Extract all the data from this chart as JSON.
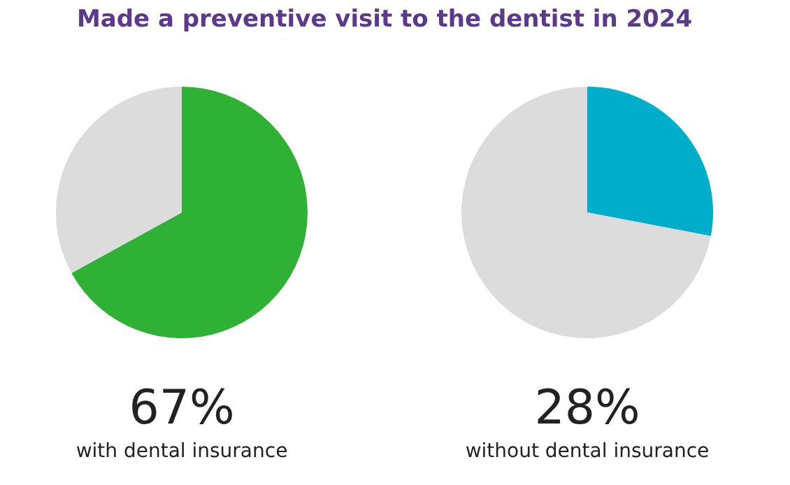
{
  "chart_data": [
    {
      "type": "pie",
      "title": "Made a preventive visit to the dentist in 2024",
      "categories": [
        null,
        null
      ],
      "values": [
        67,
        33
      ],
      "colors": [
        "#2eb135",
        "#dcdcdc"
      ],
      "annotations": [
        "67%",
        "with dental insurance"
      ]
    },
    {
      "type": "pie",
      "categories": [
        null,
        null
      ],
      "values": [
        28,
        72
      ],
      "colors": [
        "#00aecb",
        "#dcdcdc"
      ],
      "annotations": [
        "28%",
        "without dental insurance"
      ]
    }
  ]
}
